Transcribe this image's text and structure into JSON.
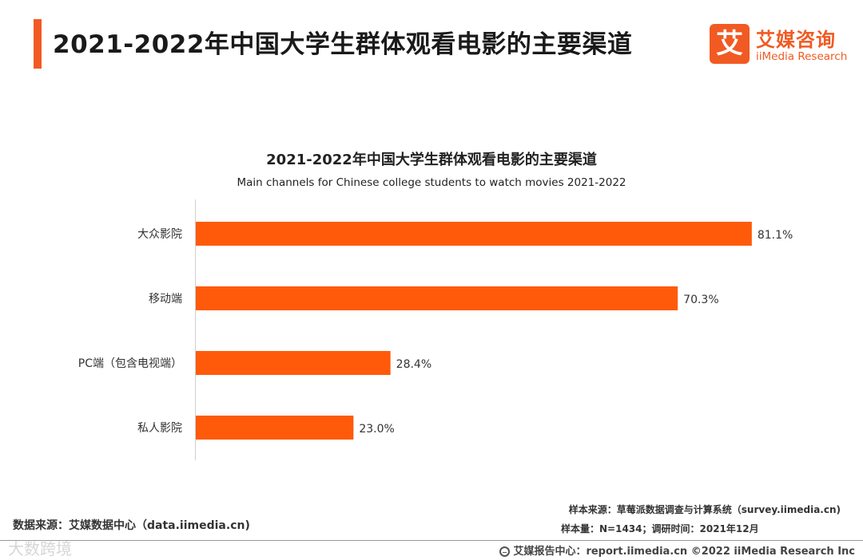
{
  "header": {
    "title": "2021-2022年中国大学生群体观看电影的主要渠道",
    "accent_color": "#f15a22"
  },
  "logo": {
    "mark": "艾",
    "cn": "艾媒咨询",
    "en": "iiMedia Research"
  },
  "chart_data": {
    "type": "bar",
    "orientation": "horizontal",
    "title": "2021-2022年中国大学生群体观看电影的主要渠道",
    "subtitle": "Main channels for Chinese college students to watch movies 2021-2022",
    "categories": [
      "大众影院",
      "移动端",
      "PC端（包含电视端）",
      "私人影院"
    ],
    "values": [
      81.1,
      70.3,
      28.4,
      23.0
    ],
    "value_labels": [
      "81.1%",
      "70.3%",
      "28.4%",
      "23.0%"
    ],
    "unit": "%",
    "xlim": [
      0,
      100
    ],
    "bar_color": "#ff5a0a",
    "grid": false
  },
  "footer": {
    "data_source": "数据来源：艾媒数据中心（data.iimedia.cn)",
    "sample_source": "样本来源：草莓派数据调查与计算系统（survey.iimedia.cn)",
    "sample_size": "样本量：N=1434；调研时间：2021年12月",
    "report_center": "艾媒报告中心：report.iimedia.cn   ©2022  iiMedia Research  Inc",
    "watermark": "大数跨境"
  }
}
